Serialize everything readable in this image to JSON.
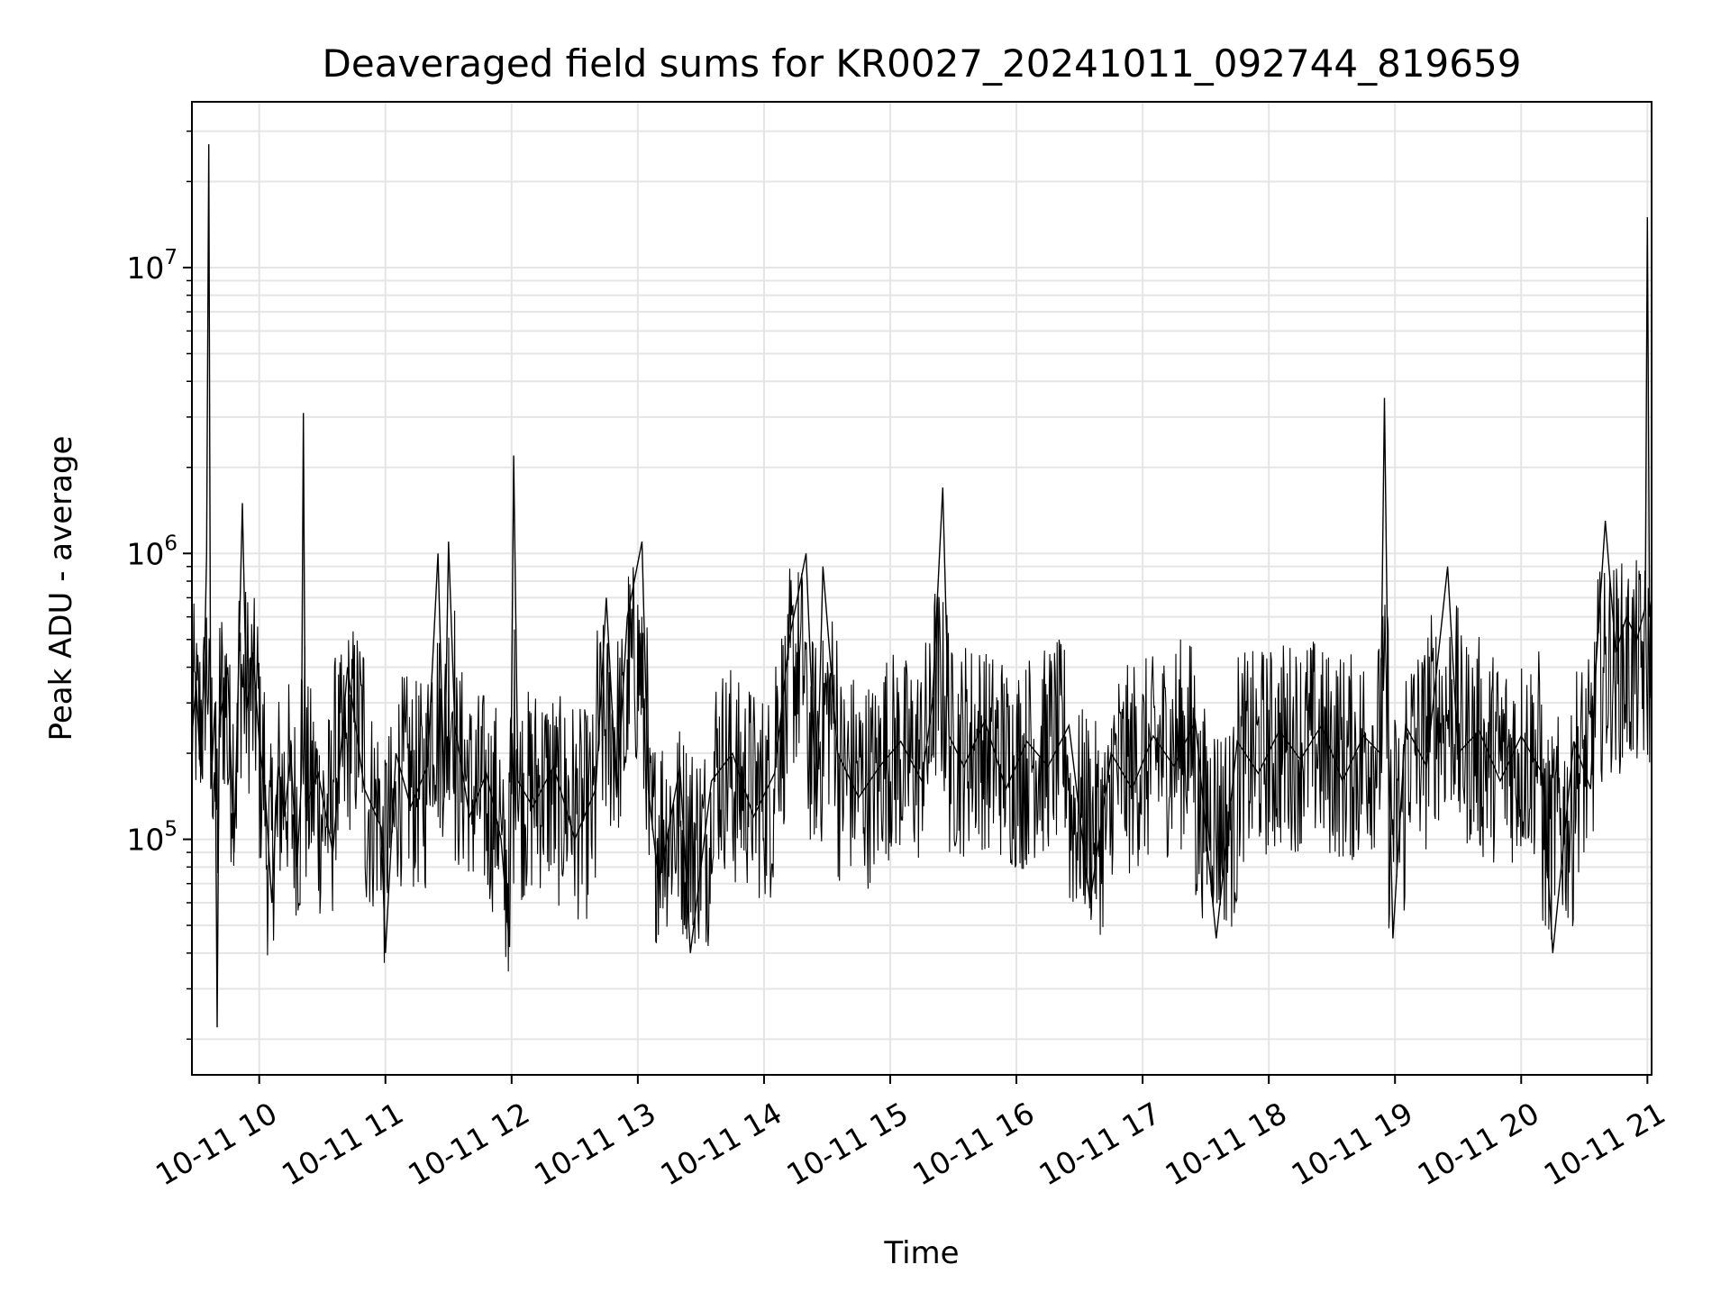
{
  "chart_data": {
    "type": "line",
    "title": "Deaveraged field sums for KR0027_20241011_092744_819659",
    "xlabel": "Time",
    "ylabel": "Peak ADU - average",
    "xscale": "time",
    "yscale": "log",
    "xlim": [
      "2024-10-11 09:28:00",
      "2024-10-11 21:02:00"
    ],
    "ylim": [
      15000,
      38000000
    ],
    "grid": true,
    "colors": {
      "line": "#000000",
      "grid": "#e5e5e5",
      "axes": "#000000"
    },
    "x_ticks": [
      {
        "t": "2024-10-11 10:00:00",
        "label": "10-11 10"
      },
      {
        "t": "2024-10-11 11:00:00",
        "label": "10-11 11"
      },
      {
        "t": "2024-10-11 12:00:00",
        "label": "10-11 12"
      },
      {
        "t": "2024-10-11 13:00:00",
        "label": "10-11 13"
      },
      {
        "t": "2024-10-11 14:00:00",
        "label": "10-11 14"
      },
      {
        "t": "2024-10-11 15:00:00",
        "label": "10-11 15"
      },
      {
        "t": "2024-10-11 16:00:00",
        "label": "10-11 16"
      },
      {
        "t": "2024-10-11 17:00:00",
        "label": "10-11 17"
      },
      {
        "t": "2024-10-11 18:00:00",
        "label": "10-11 18"
      },
      {
        "t": "2024-10-11 19:00:00",
        "label": "10-11 19"
      },
      {
        "t": "2024-10-11 20:00:00",
        "label": "10-11 20"
      },
      {
        "t": "2024-10-11 21:00:00",
        "label": "10-11 21"
      }
    ],
    "y_ticks": [
      {
        "value": 100000,
        "base": "10",
        "exp": "5"
      },
      {
        "value": 1000000,
        "base": "10",
        "exp": "6"
      },
      {
        "value": 10000000,
        "base": "10",
        "exp": "7"
      }
    ],
    "series": [
      {
        "values": [
          [
            "2024-10-11 09:28:00",
            230000
          ],
          [
            "2024-10-11 09:30:00",
            350000
          ],
          [
            "2024-10-11 09:32:00",
            180000
          ],
          [
            "2024-10-11 09:34:00",
            420000
          ],
          [
            "2024-10-11 09:35:00",
            1000000
          ],
          [
            "2024-10-11 09:36:00",
            27000000
          ],
          [
            "2024-10-11 09:37:00",
            150000
          ],
          [
            "2024-10-11 09:39:00",
            300000
          ],
          [
            "2024-10-11 09:40:00",
            22000
          ],
          [
            "2024-10-11 09:41:00",
            250000
          ],
          [
            "2024-10-11 09:45:00",
            400000
          ],
          [
            "2024-10-11 09:48:00",
            90000
          ],
          [
            "2024-10-11 09:50:00",
            350000
          ],
          [
            "2024-10-11 09:52:00",
            1500000
          ],
          [
            "2024-10-11 09:54:00",
            280000
          ],
          [
            "2024-10-11 09:57:00",
            450000
          ],
          [
            "2024-10-11 10:00:00",
            220000
          ],
          [
            "2024-10-11 10:03:00",
            140000
          ],
          [
            "2024-10-11 10:06:00",
            60000
          ],
          [
            "2024-10-11 10:09:00",
            180000
          ],
          [
            "2024-10-11 10:12:00",
            120000
          ],
          [
            "2024-10-11 10:15:00",
            200000
          ],
          [
            "2024-10-11 10:18:00",
            80000
          ],
          [
            "2024-10-11 10:20:00",
            160000
          ],
          [
            "2024-10-11 10:21:00",
            3100000
          ],
          [
            "2024-10-11 10:22:00",
            130000
          ],
          [
            "2024-10-11 10:28:00",
            170000
          ],
          [
            "2024-10-11 10:35:00",
            90000
          ],
          [
            "2024-10-11 10:42:00",
            400000
          ],
          [
            "2024-10-11 10:50:00",
            150000
          ],
          [
            "2024-10-11 10:58:00",
            110000
          ],
          [
            "2024-10-11 11:00:00",
            40000
          ],
          [
            "2024-10-11 11:05:00",
            200000
          ],
          [
            "2024-10-11 11:12:00",
            130000
          ],
          [
            "2024-10-11 11:20:00",
            180000
          ],
          [
            "2024-10-11 11:25:00",
            1000000
          ],
          [
            "2024-10-11 11:28:00",
            140000
          ],
          [
            "2024-10-11 11:30:00",
            1100000
          ],
          [
            "2024-10-11 11:33:00",
            250000
          ],
          [
            "2024-10-11 11:40:00",
            120000
          ],
          [
            "2024-10-11 11:48:00",
            170000
          ],
          [
            "2024-10-11 11:55:00",
            100000
          ],
          [
            "2024-10-11 11:59:00",
            42000
          ],
          [
            "2024-10-11 12:01:00",
            2200000
          ],
          [
            "2024-10-11 12:03:00",
            160000
          ],
          [
            "2024-10-11 12:10:00",
            130000
          ],
          [
            "2024-10-11 12:20:00",
            180000
          ],
          [
            "2024-10-11 12:30:00",
            100000
          ],
          [
            "2024-10-11 12:40:00",
            150000
          ],
          [
            "2024-10-11 12:45:00",
            700000
          ],
          [
            "2024-10-11 12:50:00",
            140000
          ],
          [
            "2024-10-11 12:55:00",
            600000
          ],
          [
            "2024-10-11 13:02:00",
            1100000
          ],
          [
            "2024-10-11 13:05:00",
            150000
          ],
          [
            "2024-10-11 13:10:00",
            70000
          ],
          [
            "2024-10-11 13:20:00",
            180000
          ],
          [
            "2024-10-11 13:25:00",
            40000
          ],
          [
            "2024-10-11 13:35:00",
            160000
          ],
          [
            "2024-10-11 13:45:00",
            200000
          ],
          [
            "2024-10-11 13:55:00",
            120000
          ],
          [
            "2024-10-11 14:05:00",
            170000
          ],
          [
            "2024-10-11 14:12:00",
            500000
          ],
          [
            "2024-10-11 14:20:00",
            1000000
          ],
          [
            "2024-10-11 14:25:00",
            120000
          ],
          [
            "2024-10-11 14:28:00",
            900000
          ],
          [
            "2024-10-11 14:35:00",
            200000
          ],
          [
            "2024-10-11 14:45:00",
            140000
          ],
          [
            "2024-10-11 14:55:00",
            180000
          ],
          [
            "2024-10-11 15:05:00",
            220000
          ],
          [
            "2024-10-11 15:15:00",
            160000
          ],
          [
            "2024-10-11 15:20:00",
            300000
          ],
          [
            "2024-10-11 15:25:00",
            1700000
          ],
          [
            "2024-10-11 15:28:00",
            230000
          ],
          [
            "2024-10-11 15:35:00",
            180000
          ],
          [
            "2024-10-11 15:45:00",
            260000
          ],
          [
            "2024-10-11 15:55:00",
            150000
          ],
          [
            "2024-10-11 16:05:00",
            220000
          ],
          [
            "2024-10-11 16:15:00",
            180000
          ],
          [
            "2024-10-11 16:25:00",
            250000
          ],
          [
            "2024-10-11 16:35:00",
            60000
          ],
          [
            "2024-10-11 16:45:00",
            200000
          ],
          [
            "2024-10-11 16:55:00",
            150000
          ],
          [
            "2024-10-11 17:05:00",
            230000
          ],
          [
            "2024-10-11 17:15:00",
            180000
          ],
          [
            "2024-10-11 17:25:00",
            260000
          ],
          [
            "2024-10-11 17:35:00",
            45000
          ],
          [
            "2024-10-11 17:45:00",
            220000
          ],
          [
            "2024-10-11 17:55:00",
            170000
          ],
          [
            "2024-10-11 18:05:00",
            240000
          ],
          [
            "2024-10-11 18:15:00",
            190000
          ],
          [
            "2024-10-11 18:25:00",
            250000
          ],
          [
            "2024-10-11 18:35:00",
            160000
          ],
          [
            "2024-10-11 18:45:00",
            230000
          ],
          [
            "2024-10-11 18:53:00",
            200000
          ],
          [
            "2024-10-11 18:55:00",
            3500000
          ],
          [
            "2024-10-11 18:57:00",
            210000
          ],
          [
            "2024-10-11 18:59:00",
            45000
          ],
          [
            "2024-10-11 19:05:00",
            250000
          ],
          [
            "2024-10-11 19:15:00",
            180000
          ],
          [
            "2024-10-11 19:25:00",
            900000
          ],
          [
            "2024-10-11 19:30:00",
            200000
          ],
          [
            "2024-10-11 19:40:00",
            240000
          ],
          [
            "2024-10-11 19:50:00",
            160000
          ],
          [
            "2024-10-11 20:00:00",
            230000
          ],
          [
            "2024-10-11 20:10:00",
            170000
          ],
          [
            "2024-10-11 20:15:00",
            40000
          ],
          [
            "2024-10-11 20:25:00",
            220000
          ],
          [
            "2024-10-11 20:33:00",
            150000
          ],
          [
            "2024-10-11 20:35:00",
            350000
          ],
          [
            "2024-10-11 20:40:00",
            1300000
          ],
          [
            "2024-10-11 20:45:00",
            450000
          ],
          [
            "2024-10-11 20:50:00",
            600000
          ],
          [
            "2024-10-11 20:55:00",
            500000
          ],
          [
            "2024-10-11 20:59:00",
            650000
          ],
          [
            "2024-10-11 21:00:00",
            15000000
          ],
          [
            "2024-10-11 21:01:00",
            600000
          ],
          [
            "2024-10-11 21:02:00",
            700000
          ]
        ]
      }
    ]
  }
}
